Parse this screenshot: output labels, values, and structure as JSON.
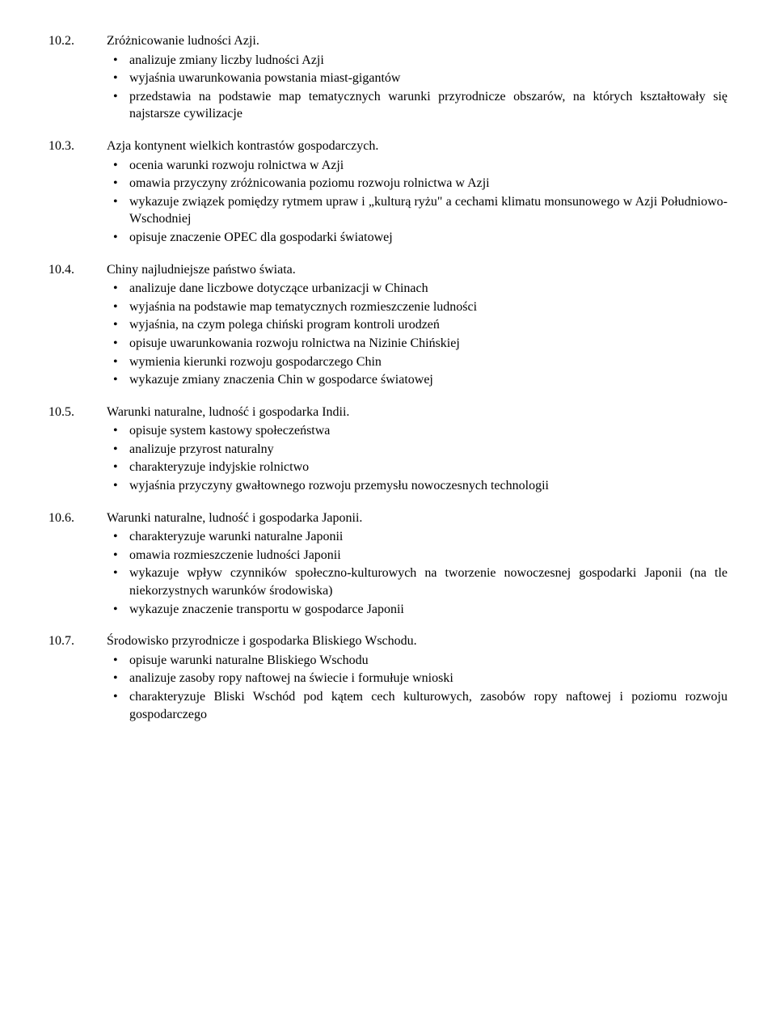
{
  "sections": [
    {
      "number": "10.2.",
      "title": "Zróżnicowanie ludności Azji.",
      "items": [
        "analizuje zmiany liczby ludności Azji",
        "wyjaśnia uwarunkowania powstania miast-gigantów",
        "przedstawia na podstawie map tematycznych warunki przyrodnicze obszarów, na których kształtowały się najstarsze cywilizacje"
      ]
    },
    {
      "number": "10.3.",
      "title": "Azja kontynent wielkich kontrastów gospodarczych.",
      "items": [
        "ocenia warunki rozwoju rolnictwa w Azji",
        "omawia przyczyny zróżnicowania poziomu rozwoju rolnictwa w Azji",
        "wykazuje związek pomiędzy rytmem upraw i „kulturą ryżu\" a cechami klimatu monsunowego w Azji Południowo-Wschodniej",
        "opisuje znaczenie OPEC dla gospodarki światowej"
      ]
    },
    {
      "number": "10.4.",
      "title": "Chiny najludniejsze państwo świata.",
      "items": [
        "analizuje dane liczbowe dotyczące urbanizacji w Chinach",
        "wyjaśnia na podstawie map tematycznych rozmieszczenie ludności",
        "wyjaśnia, na czym polega chiński program kontroli urodzeń",
        "opisuje uwarunkowania rozwoju rolnictwa na Nizinie Chińskiej",
        "wymienia kierunki rozwoju gospodarczego Chin",
        "wykazuje zmiany znaczenia Chin w gospodarce światowej"
      ]
    },
    {
      "number": "10.5.",
      "title": "Warunki naturalne, ludność i gospodarka Indii.",
      "items": [
        "opisuje system kastowy społeczeństwa",
        "analizuje przyrost naturalny",
        "charakteryzuje indyjskie rolnictwo",
        "wyjaśnia przyczyny gwałtownego rozwoju przemysłu nowoczesnych technologii"
      ]
    },
    {
      "number": "10.6.",
      "title": "Warunki naturalne, ludność i gospodarka Japonii.",
      "items": [
        "charakteryzuje warunki naturalne Japonii",
        "omawia rozmieszczenie ludności Japonii",
        "wykazuje wpływ czynników społeczno-kulturowych na tworzenie nowoczesnej gospodarki Japonii (na tle niekorzystnych warunków środowiska)",
        "wykazuje znaczenie transportu w gospodarce Japonii"
      ]
    },
    {
      "number": "10.7.",
      "title": "Środowisko przyrodnicze i gospodarka Bliskiego Wschodu.",
      "items": [
        "opisuje warunki naturalne Bliskiego Wschodu",
        "analizuje zasoby ropy naftowej na świecie i formułuje wnioski",
        "charakteryzuje Bliski Wschód pod kątem cech kulturowych, zasobów ropy naftowej i poziomu rozwoju gospodarczego"
      ]
    }
  ]
}
